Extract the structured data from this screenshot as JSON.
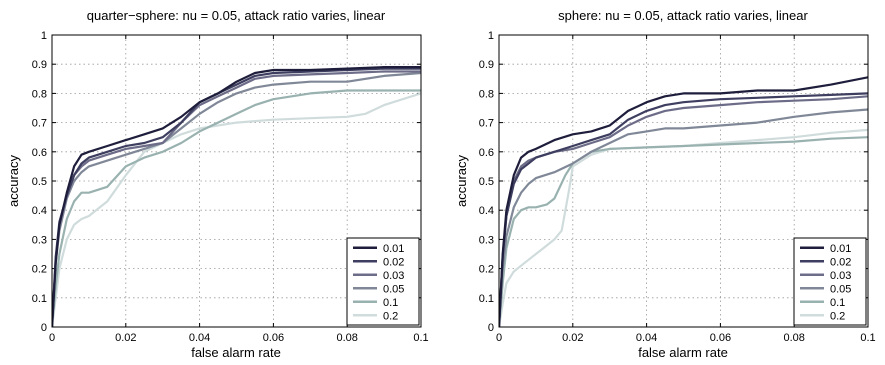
{
  "chart_data": [
    {
      "type": "line",
      "title": "quarter−sphere: nu = 0.05, attack ratio varies, linear",
      "xlabel": "false alarm rate",
      "ylabel": "accuracy",
      "xlim": [
        0,
        0.1
      ],
      "ylim": [
        0,
        1
      ],
      "xticks": [
        "0",
        "0.02",
        "0.04",
        "0.06",
        "0.08",
        "0.1"
      ],
      "yticks": [
        "0",
        "0.1",
        "0.2",
        "0.3",
        "0.4",
        "0.5",
        "0.6",
        "0.7",
        "0.8",
        "0.9",
        "1"
      ],
      "grid": true,
      "legend_position": "bottom-right",
      "series": [
        {
          "name": "0.01",
          "color": "#1e1e3c",
          "x": [
            0,
            0.001,
            0.002,
            0.004,
            0.006,
            0.008,
            0.01,
            0.015,
            0.02,
            0.025,
            0.03,
            0.035,
            0.04,
            0.045,
            0.05,
            0.055,
            0.06,
            0.07,
            0.08,
            0.09,
            0.1
          ],
          "y": [
            0,
            0.22,
            0.35,
            0.46,
            0.55,
            0.59,
            0.6,
            0.62,
            0.64,
            0.66,
            0.68,
            0.72,
            0.77,
            0.8,
            0.84,
            0.87,
            0.88,
            0.88,
            0.885,
            0.89,
            0.89
          ]
        },
        {
          "name": "0.02",
          "color": "#3e3e60",
          "x": [
            0,
            0.001,
            0.002,
            0.004,
            0.006,
            0.008,
            0.01,
            0.015,
            0.02,
            0.025,
            0.03,
            0.035,
            0.04,
            0.045,
            0.05,
            0.055,
            0.06,
            0.07,
            0.08,
            0.09,
            0.1
          ],
          "y": [
            0,
            0.24,
            0.36,
            0.45,
            0.52,
            0.56,
            0.58,
            0.6,
            0.62,
            0.63,
            0.65,
            0.7,
            0.77,
            0.8,
            0.83,
            0.86,
            0.87,
            0.875,
            0.88,
            0.885,
            0.885
          ]
        },
        {
          "name": "0.03",
          "color": "#6c6c88",
          "x": [
            0,
            0.001,
            0.002,
            0.004,
            0.006,
            0.008,
            0.01,
            0.015,
            0.02,
            0.025,
            0.03,
            0.035,
            0.04,
            0.045,
            0.05,
            0.055,
            0.06,
            0.07,
            0.08,
            0.09,
            0.1
          ],
          "y": [
            0,
            0.23,
            0.35,
            0.45,
            0.52,
            0.55,
            0.57,
            0.59,
            0.61,
            0.62,
            0.63,
            0.7,
            0.76,
            0.79,
            0.82,
            0.85,
            0.86,
            0.865,
            0.87,
            0.875,
            0.875
          ]
        },
        {
          "name": "0.05",
          "color": "#808898",
          "x": [
            0,
            0.001,
            0.002,
            0.004,
            0.006,
            0.008,
            0.01,
            0.015,
            0.02,
            0.025,
            0.03,
            0.035,
            0.04,
            0.045,
            0.05,
            0.055,
            0.06,
            0.07,
            0.08,
            0.09,
            0.1
          ],
          "y": [
            0,
            0.22,
            0.33,
            0.44,
            0.5,
            0.53,
            0.55,
            0.57,
            0.59,
            0.61,
            0.63,
            0.68,
            0.73,
            0.77,
            0.8,
            0.82,
            0.83,
            0.84,
            0.84,
            0.86,
            0.87
          ]
        },
        {
          "name": "0.1",
          "color": "#99b2b0",
          "x": [
            0,
            0.001,
            0.002,
            0.004,
            0.006,
            0.008,
            0.01,
            0.015,
            0.02,
            0.025,
            0.03,
            0.035,
            0.04,
            0.045,
            0.05,
            0.055,
            0.06,
            0.07,
            0.08,
            0.09,
            0.1
          ],
          "y": [
            0,
            0.14,
            0.25,
            0.37,
            0.43,
            0.46,
            0.46,
            0.48,
            0.55,
            0.58,
            0.6,
            0.63,
            0.67,
            0.7,
            0.73,
            0.76,
            0.78,
            0.8,
            0.81,
            0.81,
            0.81
          ]
        },
        {
          "name": "0.2",
          "color": "#d0dcdc",
          "x": [
            0,
            0.001,
            0.002,
            0.004,
            0.006,
            0.008,
            0.01,
            0.015,
            0.02,
            0.025,
            0.03,
            0.035,
            0.04,
            0.045,
            0.05,
            0.055,
            0.06,
            0.07,
            0.08,
            0.085,
            0.09,
            0.1
          ],
          "y": [
            0,
            0.1,
            0.2,
            0.3,
            0.35,
            0.37,
            0.38,
            0.43,
            0.52,
            0.6,
            0.63,
            0.66,
            0.68,
            0.69,
            0.7,
            0.705,
            0.71,
            0.715,
            0.72,
            0.73,
            0.76,
            0.8
          ]
        }
      ]
    },
    {
      "type": "line",
      "title": "sphere: nu = 0.05, attack ratio varies, linear",
      "xlabel": "false alarm rate",
      "ylabel": "accuracy",
      "xlim": [
        0,
        0.1
      ],
      "ylim": [
        0,
        1
      ],
      "xticks": [
        "0",
        "0.02",
        "0.04",
        "0.06",
        "0.08",
        "0.1"
      ],
      "yticks": [
        "0",
        "0.1",
        "0.2",
        "0.3",
        "0.4",
        "0.5",
        "0.6",
        "0.7",
        "0.8",
        "0.9",
        "1"
      ],
      "grid": true,
      "legend_position": "bottom-right",
      "series": [
        {
          "name": "0.01",
          "color": "#1e1e3c",
          "x": [
            0,
            0.001,
            0.002,
            0.004,
            0.006,
            0.008,
            0.01,
            0.015,
            0.02,
            0.025,
            0.03,
            0.035,
            0.04,
            0.045,
            0.05,
            0.06,
            0.07,
            0.08,
            0.09,
            0.1
          ],
          "y": [
            0,
            0.25,
            0.4,
            0.52,
            0.58,
            0.6,
            0.61,
            0.64,
            0.66,
            0.67,
            0.69,
            0.74,
            0.77,
            0.79,
            0.8,
            0.8,
            0.81,
            0.81,
            0.83,
            0.855
          ]
        },
        {
          "name": "0.02",
          "color": "#3e3e60",
          "x": [
            0,
            0.001,
            0.002,
            0.004,
            0.006,
            0.008,
            0.01,
            0.015,
            0.02,
            0.025,
            0.03,
            0.035,
            0.04,
            0.045,
            0.05,
            0.06,
            0.07,
            0.08,
            0.09,
            0.1
          ],
          "y": [
            0,
            0.24,
            0.38,
            0.49,
            0.54,
            0.56,
            0.58,
            0.6,
            0.62,
            0.64,
            0.66,
            0.71,
            0.74,
            0.76,
            0.77,
            0.78,
            0.785,
            0.79,
            0.795,
            0.8
          ]
        },
        {
          "name": "0.03",
          "color": "#6c6c88",
          "x": [
            0,
            0.001,
            0.002,
            0.004,
            0.006,
            0.008,
            0.01,
            0.015,
            0.02,
            0.025,
            0.03,
            0.035,
            0.04,
            0.045,
            0.05,
            0.06,
            0.07,
            0.08,
            0.09,
            0.1
          ],
          "y": [
            0,
            0.24,
            0.38,
            0.5,
            0.55,
            0.57,
            0.58,
            0.6,
            0.61,
            0.63,
            0.65,
            0.69,
            0.72,
            0.74,
            0.75,
            0.76,
            0.77,
            0.775,
            0.78,
            0.79
          ]
        },
        {
          "name": "0.05",
          "color": "#808898",
          "x": [
            0,
            0.001,
            0.002,
            0.004,
            0.006,
            0.008,
            0.01,
            0.015,
            0.02,
            0.025,
            0.03,
            0.035,
            0.04,
            0.045,
            0.05,
            0.06,
            0.07,
            0.08,
            0.09,
            0.1
          ],
          "y": [
            0,
            0.2,
            0.31,
            0.41,
            0.46,
            0.49,
            0.51,
            0.53,
            0.56,
            0.6,
            0.63,
            0.66,
            0.67,
            0.68,
            0.68,
            0.69,
            0.7,
            0.72,
            0.735,
            0.745
          ]
        },
        {
          "name": "0.1",
          "color": "#99b2b0",
          "x": [
            0,
            0.001,
            0.002,
            0.004,
            0.006,
            0.008,
            0.01,
            0.013,
            0.015,
            0.018,
            0.02,
            0.025,
            0.03,
            0.04,
            0.05,
            0.06,
            0.07,
            0.08,
            0.09,
            0.1
          ],
          "y": [
            0,
            0.15,
            0.27,
            0.37,
            0.4,
            0.41,
            0.41,
            0.42,
            0.44,
            0.52,
            0.56,
            0.6,
            0.61,
            0.615,
            0.62,
            0.625,
            0.63,
            0.635,
            0.645,
            0.65
          ]
        },
        {
          "name": "0.2",
          "color": "#d0dcdc",
          "x": [
            0,
            0.001,
            0.002,
            0.004,
            0.006,
            0.008,
            0.01,
            0.012,
            0.015,
            0.017,
            0.018,
            0.019,
            0.02,
            0.025,
            0.03,
            0.04,
            0.05,
            0.06,
            0.07,
            0.08,
            0.09,
            0.1
          ],
          "y": [
            0,
            0.08,
            0.15,
            0.19,
            0.21,
            0.23,
            0.25,
            0.27,
            0.3,
            0.33,
            0.4,
            0.47,
            0.55,
            0.59,
            0.61,
            0.615,
            0.62,
            0.63,
            0.64,
            0.65,
            0.665,
            0.675
          ]
        }
      ]
    }
  ]
}
